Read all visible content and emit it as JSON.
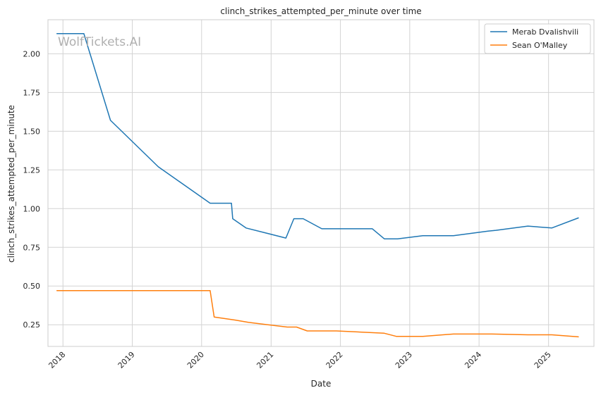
{
  "chart_data": {
    "type": "line",
    "title": "clinch_strikes_attempted_per_minute over time",
    "xlabel": "Date",
    "ylabel": "clinch_strikes_attempted_per_minute",
    "watermark": "WolfTickets.AI",
    "x_ticks": [
      "2018",
      "2019",
      "2020",
      "2021",
      "2022",
      "2023",
      "2024",
      "2025"
    ],
    "y_ticks": [
      "0.25",
      "0.50",
      "0.75",
      "1.00",
      "1.25",
      "1.50",
      "1.75",
      "2.00"
    ],
    "xlim": [
      "2017-10-14",
      "2025-08-28"
    ],
    "ylim": [
      0.11,
      2.22
    ],
    "grid": true,
    "legend_position": "top-right",
    "series": [
      {
        "name": "Merab Dvalishvili",
        "color": "#1f77b4",
        "points": [
          [
            "2017-11-30",
            2.13
          ],
          [
            "2018-04-21",
            2.13
          ],
          [
            "2018-09-08",
            1.57
          ],
          [
            "2019-05-18",
            1.27
          ],
          [
            "2020-02-15",
            1.035
          ],
          [
            "2020-06-06",
            1.035
          ],
          [
            "2020-06-13",
            0.935
          ],
          [
            "2020-08-22",
            0.875
          ],
          [
            "2021-03-20",
            0.81
          ],
          [
            "2021-05-01",
            0.935
          ],
          [
            "2021-06-19",
            0.935
          ],
          [
            "2021-09-25",
            0.87
          ],
          [
            "2022-06-18",
            0.87
          ],
          [
            "2022-08-20",
            0.805
          ],
          [
            "2022-10-29",
            0.805
          ],
          [
            "2023-03-11",
            0.825
          ],
          [
            "2023-08-19",
            0.825
          ],
          [
            "2024-02-17",
            0.855
          ],
          [
            "2024-03-30",
            0.86
          ],
          [
            "2024-09-14",
            0.887
          ],
          [
            "2025-01-18",
            0.875
          ],
          [
            "2025-06-07",
            0.94
          ]
        ]
      },
      {
        "name": "Sean O'Malley",
        "color": "#ff7f0e",
        "points": [
          [
            "2017-11-30",
            0.47
          ],
          [
            "2020-02-15",
            0.47
          ],
          [
            "2020-03-07",
            0.3
          ],
          [
            "2020-06-27",
            0.28
          ],
          [
            "2020-09-05",
            0.265
          ],
          [
            "2021-03-27",
            0.235
          ],
          [
            "2021-05-15",
            0.235
          ],
          [
            "2021-07-10",
            0.21
          ],
          [
            "2021-12-11",
            0.21
          ],
          [
            "2022-08-20",
            0.195
          ],
          [
            "2022-10-22",
            0.175
          ],
          [
            "2023-03-11",
            0.175
          ],
          [
            "2023-08-19",
            0.19
          ],
          [
            "2024-03-09",
            0.19
          ],
          [
            "2024-09-14",
            0.185
          ],
          [
            "2025-01-18",
            0.185
          ],
          [
            "2025-06-07",
            0.172
          ]
        ]
      }
    ]
  }
}
